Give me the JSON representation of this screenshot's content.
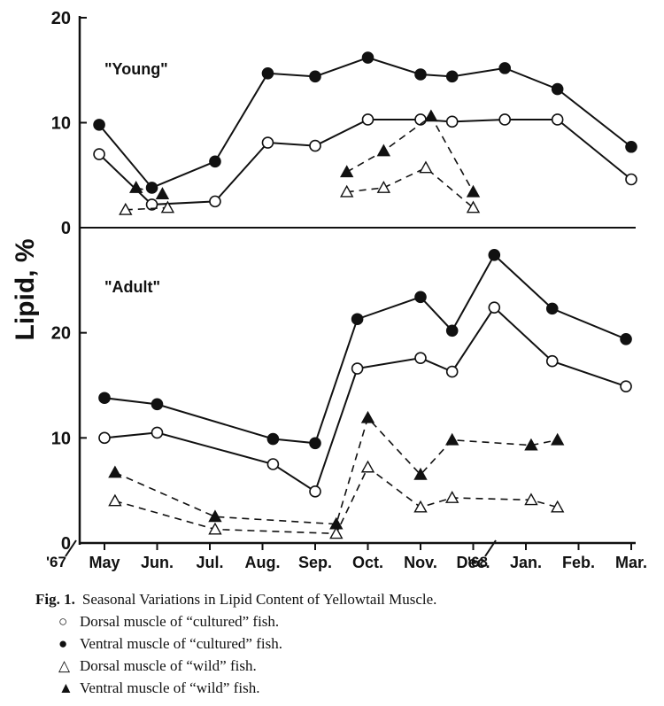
{
  "chart_data": [
    {
      "type": "line",
      "panel_label": "\"Young\"",
      "ylim": [
        0,
        20
      ],
      "y_ticks": [
        "0",
        "10",
        "20"
      ],
      "x_unit": "month index (0 = May '67)",
      "series": [
        {
          "key": "cult_ventral",
          "style": "solid",
          "marker": "filled-circle",
          "x": [
            -0.1,
            0.9,
            2.1,
            3.1,
            4.0,
            5.0,
            6.0,
            6.6,
            7.6,
            8.6,
            10.0
          ],
          "y": [
            9.8,
            3.8,
            6.3,
            14.7,
            14.4,
            16.2,
            14.6,
            14.4,
            15.2,
            13.2,
            7.7
          ]
        },
        {
          "key": "cult_dorsal",
          "style": "solid",
          "marker": "open-circle",
          "x": [
            -0.1,
            0.9,
            2.1,
            3.1,
            4.0,
            5.0,
            6.0,
            6.6,
            7.6,
            8.6,
            10.0
          ],
          "y": [
            7.0,
            2.2,
            2.5,
            8.1,
            7.8,
            10.3,
            10.3,
            10.1,
            10.3,
            10.3,
            4.6
          ]
        },
        {
          "key": "wild_ventral",
          "style": "dashed",
          "marker": "filled-triangle",
          "x": [
            0.6,
            1.1
          ],
          "y": [
            3.8,
            3.2
          ]
        },
        {
          "key": "wild_ventral",
          "style": "dashed",
          "marker": "filled-triangle",
          "x": [
            4.6,
            5.3,
            6.2,
            7.0
          ],
          "y": [
            5.3,
            7.3,
            10.6,
            3.4
          ]
        },
        {
          "key": "wild_dorsal",
          "style": "dashed",
          "marker": "open-triangle",
          "x": [
            0.4,
            1.2
          ],
          "y": [
            1.7,
            1.9
          ]
        },
        {
          "key": "wild_dorsal",
          "style": "dashed",
          "marker": "open-triangle",
          "x": [
            4.6,
            5.3,
            6.1,
            7.0
          ],
          "y": [
            3.4,
            3.8,
            5.7,
            1.9
          ]
        }
      ]
    },
    {
      "type": "line",
      "panel_label": "\"Adult\"",
      "ylim": [
        0,
        30
      ],
      "y_ticks": [
        "0",
        "10",
        "20"
      ],
      "x_unit": "month index (0 = May '67)",
      "series": [
        {
          "key": "cult_ventral",
          "style": "solid",
          "marker": "filled-circle",
          "x": [
            0.0,
            1.0,
            3.2,
            4.0,
            4.8,
            6.0,
            6.6,
            7.4,
            8.5,
            9.9
          ],
          "y": [
            13.8,
            13.2,
            9.9,
            9.5,
            21.3,
            23.4,
            20.2,
            27.4,
            22.3,
            19.4
          ]
        },
        {
          "key": "cult_dorsal",
          "style": "solid",
          "marker": "open-circle",
          "x": [
            0.0,
            1.0,
            3.2,
            4.0,
            4.8,
            6.0,
            6.6,
            7.4,
            8.5,
            9.9
          ],
          "y": [
            10.0,
            10.5,
            7.5,
            4.9,
            16.6,
            17.6,
            16.3,
            22.4,
            17.3,
            14.9
          ]
        },
        {
          "key": "wild_ventral",
          "style": "dashed",
          "marker": "filled-triangle",
          "x": [
            0.2,
            2.1,
            4.4,
            5.0,
            6.0,
            6.6,
            8.1,
            8.6
          ],
          "y": [
            6.7,
            2.5,
            1.8,
            11.9,
            6.5,
            9.8,
            9.3,
            9.8
          ]
        },
        {
          "key": "wild_dorsal",
          "style": "dashed",
          "marker": "open-triangle",
          "x": [
            0.2,
            2.1,
            4.4,
            5.0,
            6.0,
            6.6,
            8.1,
            8.6
          ],
          "y": [
            4.0,
            1.3,
            0.9,
            7.2,
            3.4,
            4.3,
            4.1,
            3.4
          ]
        }
      ]
    }
  ],
  "axis": {
    "ylabel": "Lipid, %",
    "year_start": "'67",
    "year_mid": "'68",
    "months": [
      "May",
      "Jun.",
      "Jul.",
      "Aug.",
      "Sep.",
      "Oct.",
      "Nov.",
      "Dec.",
      "Jan.",
      "Feb.",
      "Mar."
    ]
  },
  "caption": {
    "fig": "Fig. 1.",
    "title": "Seasonal Variations in Lipid Content of Yellowtail Muscle.",
    "legend": [
      {
        "symbol": "○",
        "text": "Dorsal muscle of “cultured” fish."
      },
      {
        "symbol": "●",
        "text": "Ventral muscle of “cultured” fish."
      },
      {
        "symbol": "△",
        "text": "Dorsal muscle of “wild” fish."
      },
      {
        "symbol": "▲",
        "text": "Ventral muscle of “wild” fish."
      }
    ]
  }
}
